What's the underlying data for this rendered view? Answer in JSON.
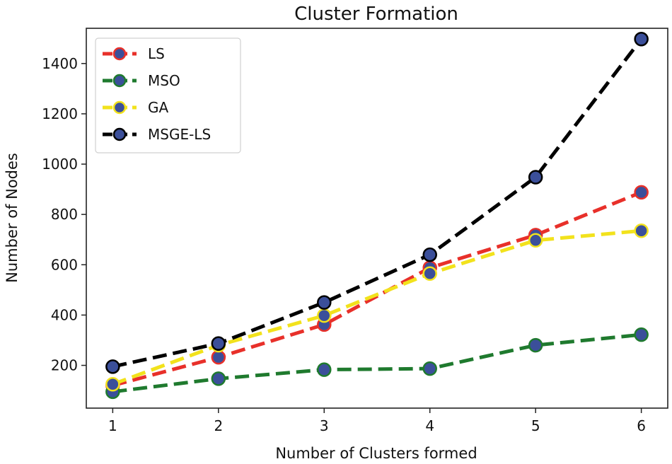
{
  "chart_data": {
    "type": "line",
    "title": "Cluster Formation",
    "xlabel": "Number of Clusters formed",
    "ylabel": "Number of Nodes",
    "x": [
      1,
      2,
      3,
      4,
      5,
      6
    ],
    "xlim": [
      0.75,
      6.25
    ],
    "ylim": [
      30,
      1540
    ],
    "yticks": [
      200,
      400,
      600,
      800,
      1000,
      1200,
      1400
    ],
    "grid": false,
    "legend_position": "top-left",
    "marker_color": "#3b4f9a",
    "series": [
      {
        "name": "LS",
        "color": "#e8302a",
        "values": [
          120,
          232,
          362,
          588,
          718,
          888
        ]
      },
      {
        "name": "MSO",
        "color": "#1f7a2e",
        "values": [
          95,
          147,
          183,
          187,
          280,
          322
        ]
      },
      {
        "name": "GA",
        "color": "#f2e21c",
        "values": [
          125,
          280,
          398,
          565,
          697,
          735
        ]
      },
      {
        "name": "MSGE-LS",
        "color": "#000000",
        "values": [
          195,
          287,
          450,
          640,
          948,
          1497
        ]
      }
    ]
  }
}
